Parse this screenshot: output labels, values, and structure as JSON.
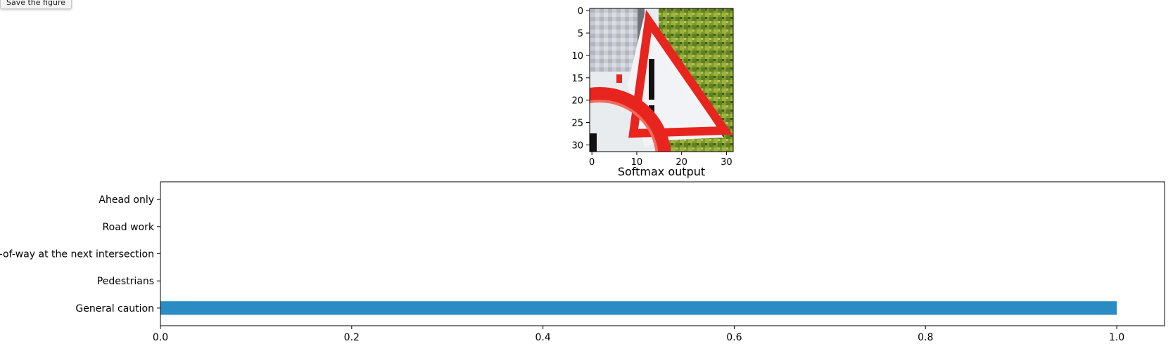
{
  "toolbar": {
    "save_label": "Save the figure"
  },
  "image_panel": {
    "xticks": [
      "0",
      "10",
      "20",
      "30"
    ],
    "yticks": [
      "0",
      "5",
      "10",
      "15",
      "20",
      "25",
      "30"
    ],
    "description_icon": "warning-triangle-traffic-sign"
  },
  "chart_data": {
    "type": "bar",
    "orientation": "horizontal",
    "title": "Softmax output",
    "xlabel": "",
    "ylabel": "",
    "categories": [
      "General caution",
      "Pedestrians",
      "Right-of-way at the next intersection",
      "Road work",
      "Ahead only"
    ],
    "values": [
      1.0,
      0.0,
      0.0,
      0.0,
      0.0
    ],
    "xlim": [
      0.0,
      1.05
    ],
    "xticks": [
      "0.0",
      "0.2",
      "0.4",
      "0.6",
      "0.8",
      "1.0"
    ],
    "bar_color": "#2b8cc4",
    "grid": false
  }
}
